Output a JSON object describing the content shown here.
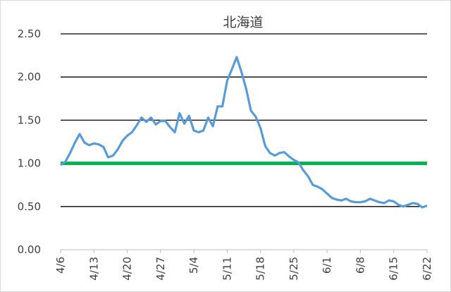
{
  "chart_data": {
    "type": "line",
    "title": "北海道",
    "xlabel": "",
    "ylabel": "",
    "ylim": [
      0,
      2.5
    ],
    "yticks": [
      "0.00",
      "0.50",
      "1.00",
      "1.50",
      "2.00",
      "2.50"
    ],
    "xtick_labels": [
      "4/6",
      "4/13",
      "4/20",
      "4/27",
      "5/4",
      "5/11",
      "5/18",
      "5/25",
      "6/1",
      "6/8",
      "6/15",
      "6/22"
    ],
    "grid": "horizontal",
    "legend": "none",
    "series": [
      {
        "color": "#5b9bd5",
        "x": [
          "4/6",
          "4/7",
          "4/8",
          "4/9",
          "4/10",
          "4/11",
          "4/12",
          "4/13",
          "4/14",
          "4/15",
          "4/16",
          "4/17",
          "4/18",
          "4/19",
          "4/20",
          "4/21",
          "4/22",
          "4/23",
          "4/24",
          "4/25",
          "4/26",
          "4/27",
          "4/28",
          "4/29",
          "4/30",
          "5/1",
          "5/2",
          "5/3",
          "5/4",
          "5/5",
          "5/6",
          "5/7",
          "5/8",
          "5/9",
          "5/10",
          "5/11",
          "5/12",
          "5/13",
          "5/14",
          "5/15",
          "5/16",
          "5/17",
          "5/18",
          "5/19",
          "5/20",
          "5/21",
          "5/22",
          "5/23",
          "5/24",
          "5/25",
          "5/26",
          "5/27",
          "5/28",
          "5/29",
          "5/30",
          "5/31",
          "6/1",
          "6/2",
          "6/3",
          "6/4",
          "6/5",
          "6/6",
          "6/7",
          "6/8",
          "6/9",
          "6/10",
          "6/11",
          "6/12",
          "6/13",
          "6/14",
          "6/15",
          "6/16",
          "6/17",
          "6/18",
          "6/19",
          "6/20",
          "6/21",
          "6/22"
        ],
        "values": [
          0.98,
          1.02,
          1.12,
          1.24,
          1.34,
          1.24,
          1.21,
          1.23,
          1.22,
          1.19,
          1.07,
          1.09,
          1.16,
          1.26,
          1.32,
          1.36,
          1.44,
          1.53,
          1.48,
          1.53,
          1.45,
          1.49,
          1.49,
          1.42,
          1.36,
          1.58,
          1.46,
          1.55,
          1.38,
          1.36,
          1.38,
          1.53,
          1.43,
          1.66,
          1.66,
          1.96,
          2.09,
          2.23,
          2.06,
          1.86,
          1.61,
          1.54,
          1.41,
          1.2,
          1.12,
          1.09,
          1.12,
          1.13,
          1.08,
          1.04,
          1.01,
          0.92,
          0.85,
          0.75,
          0.73,
          0.7,
          0.65,
          0.6,
          0.58,
          0.57,
          0.59,
          0.56,
          0.55,
          0.55,
          0.56,
          0.59,
          0.57,
          0.55,
          0.54,
          0.57,
          0.56,
          0.52,
          0.5,
          0.52,
          0.54,
          0.53,
          0.49,
          0.51
        ]
      },
      {
        "color": "#00b050",
        "x": [
          "4/6",
          "6/22"
        ],
        "values": [
          1.0,
          1.0
        ]
      }
    ]
  }
}
